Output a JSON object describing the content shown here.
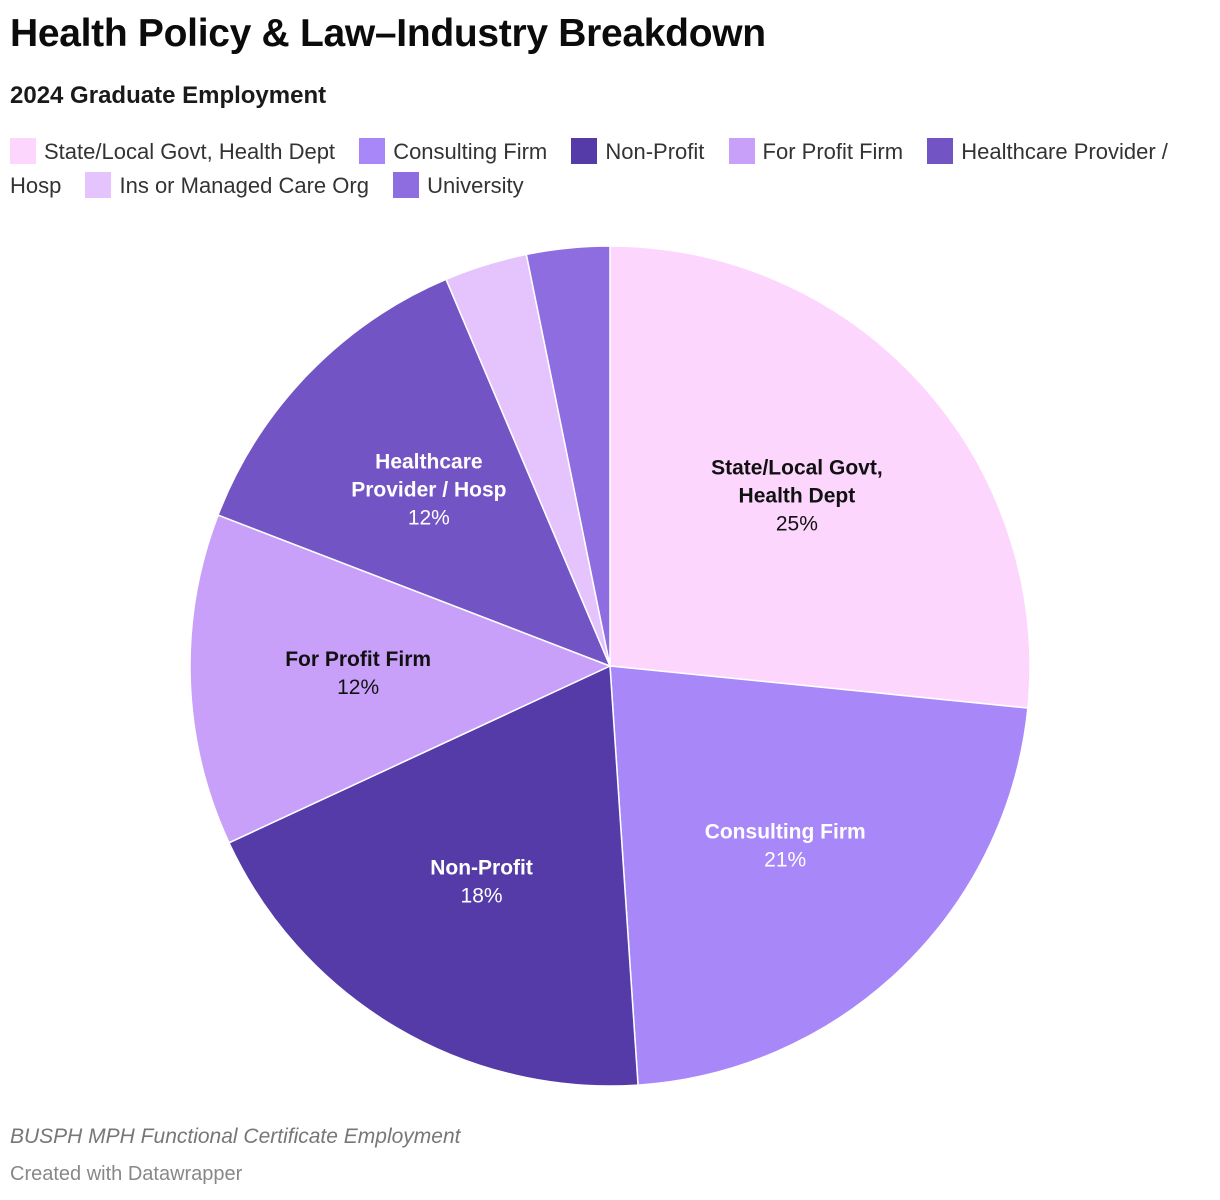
{
  "title": "Health Policy & Law–Industry Breakdown",
  "subtitle": "2024 Graduate Employment",
  "chart_data": {
    "type": "pie",
    "title": "Health Policy & Law–Industry Breakdown",
    "subtitle": "2024 Graduate Employment",
    "legend_position": "top",
    "start_angle": "12 o'clock, clockwise",
    "slices": [
      {
        "label": "State/Local Govt, Health Dept",
        "value": 25,
        "value_label": "25%",
        "color": "#fdd6fe",
        "text_color": "#111111",
        "label_lines": [
          "State/Local Govt,",
          "Health Dept"
        ],
        "show_label": true
      },
      {
        "label": "Consulting Firm",
        "value": 21,
        "value_label": "21%",
        "color": "#a887f9",
        "text_color": "#ffffff",
        "label_lines": [
          "Consulting Firm"
        ],
        "show_label": true
      },
      {
        "label": "Non-Profit",
        "value": 18,
        "value_label": "18%",
        "color": "#553ba8",
        "text_color": "#ffffff",
        "label_lines": [
          "Non-Profit"
        ],
        "show_label": true
      },
      {
        "label": "For Profit Firm",
        "value": 12,
        "value_label": "12%",
        "color": "#c8a0fa",
        "text_color": "#111111",
        "label_lines": [
          "For Profit Firm"
        ],
        "show_label": true
      },
      {
        "label": "Healthcare Provider / Hosp",
        "value": 12,
        "value_label": "12%",
        "color": "#7354c4",
        "text_color": "#ffffff",
        "label_lines": [
          "Healthcare",
          "Provider / Hosp"
        ],
        "show_label": true
      },
      {
        "label": "Ins or Managed Care Org",
        "value": 3,
        "value_label": "3%",
        "color": "#e5c3fc",
        "text_color": "#111111",
        "label_lines": [
          "Ins or Managed Care Org"
        ],
        "show_label": false
      },
      {
        "label": "University",
        "value": 3,
        "value_label": "3%",
        "color": "#8d6ddf",
        "text_color": "#ffffff",
        "label_lines": [
          "University"
        ],
        "show_label": false
      }
    ]
  },
  "footer": {
    "note": "BUSPH MPH Functional Certificate Employment",
    "credit": "Created with Datawrapper"
  }
}
